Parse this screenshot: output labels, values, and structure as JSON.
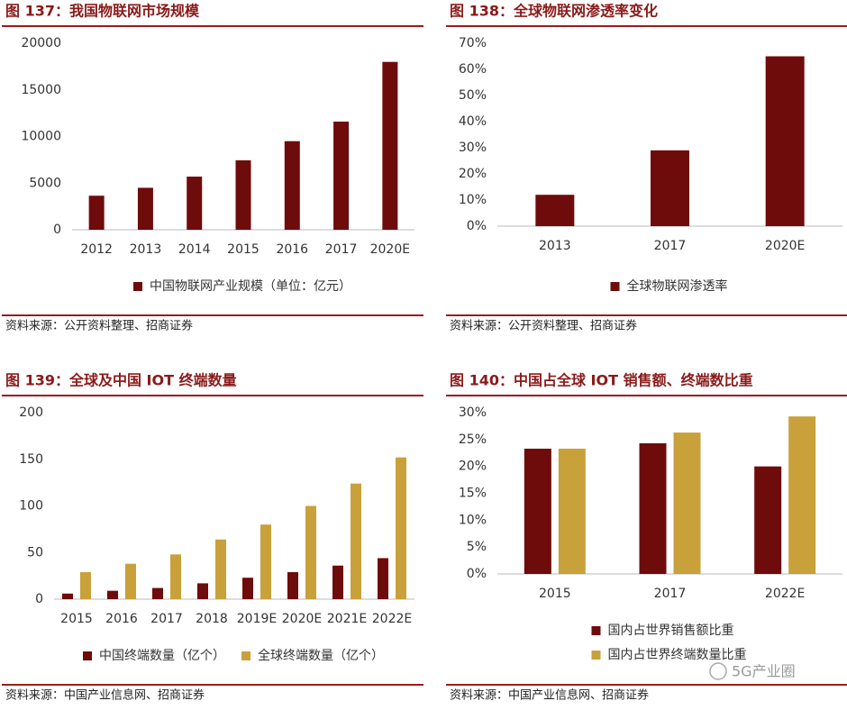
{
  "chart_data": [
    {
      "type": "bar",
      "title": "图 137：我国物联网市场规模",
      "categories": [
        "2012",
        "2013",
        "2014",
        "2015",
        "2016",
        "2017",
        "2020E"
      ],
      "series": [
        {
          "name": "中国物联网产业规模（单位：亿元）",
          "color": "#6e0b0b",
          "values": [
            3650,
            4500,
            5700,
            7450,
            9500,
            11600,
            18000
          ]
        }
      ],
      "ylim": [
        0,
        20000
      ],
      "yticks": [
        0,
        5000,
        10000,
        15000,
        20000
      ],
      "grid": false,
      "source": "资料来源：公开资料整理、招商证券"
    },
    {
      "type": "bar",
      "title": "图 138：全球物联网渗透率变化",
      "categories": [
        "2013",
        "2017",
        "2020E"
      ],
      "series": [
        {
          "name": "全球物联网渗透率",
          "color": "#6e0b0b",
          "values": [
            12,
            29,
            65
          ]
        }
      ],
      "ylim": [
        0,
        70
      ],
      "yticks": [
        {
          "value": 0,
          "label": "0%"
        },
        {
          "value": 10,
          "label": "10%"
        },
        {
          "value": 20,
          "label": "20%"
        },
        {
          "value": 30,
          "label": "30%"
        },
        {
          "value": 40,
          "label": "40%"
        },
        {
          "value": 50,
          "label": "50%"
        },
        {
          "value": 60,
          "label": "60%"
        },
        {
          "value": 70,
          "label": "70%"
        }
      ],
      "grid": false,
      "source": "资料来源：公开资料整理、招商证券"
    },
    {
      "type": "bar",
      "title": "图 139：全球及中国 IOT 终端数量",
      "categories": [
        "2015",
        "2016",
        "2017",
        "2018",
        "2019E",
        "2020E",
        "2021E",
        "2022E"
      ],
      "series": [
        {
          "name": "中国终端数量（亿个）",
          "color": "#6e0b0b",
          "values": [
            6,
            9,
            12,
            17,
            23,
            29,
            36,
            44
          ]
        },
        {
          "name": "全球终端数量（亿个）",
          "color": "#c9a13b",
          "values": [
            29,
            38,
            48,
            64,
            80,
            100,
            124,
            152
          ]
        }
      ],
      "ylim": [
        0,
        200
      ],
      "yticks": [
        0,
        50,
        100,
        150,
        200
      ],
      "grid": false,
      "source": "资料来源：中国产业信息网、招商证券"
    },
    {
      "type": "bar",
      "title": "图 140：中国占全球 IOT 销售额、终端数比重",
      "categories": [
        "2015",
        "2017",
        "2022E"
      ],
      "series": [
        {
          "name": "国内占世界销售额比重",
          "color": "#6e0b0b",
          "values": [
            23.3,
            24.3,
            20
          ]
        },
        {
          "name": "国内占世界终端数量比重",
          "color": "#c9a13b",
          "values": [
            23.3,
            26.3,
            29.3
          ]
        }
      ],
      "ylim": [
        0,
        30
      ],
      "yticks": [
        {
          "value": 0,
          "label": "0%"
        },
        {
          "value": 5,
          "label": "5%"
        },
        {
          "value": 10,
          "label": "10%"
        },
        {
          "value": 15,
          "label": "15%"
        },
        {
          "value": 20,
          "label": "20%"
        },
        {
          "value": 25,
          "label": "25%"
        },
        {
          "value": 30,
          "label": "30%"
        }
      ],
      "grid": false,
      "source": "资料来源：中国产业信息网、招商证券"
    }
  ],
  "watermark": "5G产业圈"
}
